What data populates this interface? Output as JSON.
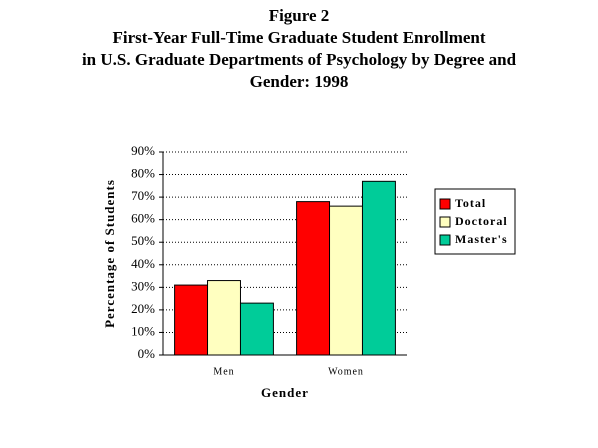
{
  "chart_data": {
    "type": "bar",
    "title": [
      "Figure 2",
      "First-Year Full-Time Graduate Student Enrollment",
      "in U.S. Graduate Departments of Psychology by Degree and",
      "Gender: 1998"
    ],
    "x_label": "Gender",
    "y_label": "Percentage of Students",
    "categories": [
      "Men",
      "Women"
    ],
    "series": [
      {
        "name": "Total",
        "color": "#ff0000",
        "values": [
          31,
          68
        ]
      },
      {
        "name": "Doctoral",
        "color": "#ffffc0",
        "values": [
          33,
          66
        ]
      },
      {
        "name": "Master's",
        "color": "#00cc99",
        "values": [
          23,
          77
        ]
      }
    ],
    "ylim": [
      0,
      90
    ],
    "yticks": [
      {
        "value": 0,
        "label": "0%"
      },
      {
        "value": 10,
        "label": "10%"
      },
      {
        "value": 20,
        "label": "20%"
      },
      {
        "value": 30,
        "label": "30%"
      },
      {
        "value": 40,
        "label": "40%"
      },
      {
        "value": 50,
        "label": "50%"
      },
      {
        "value": 60,
        "label": "60%"
      },
      {
        "value": 70,
        "label": "70%"
      },
      {
        "value": 80,
        "label": "80%"
      },
      {
        "value": 90,
        "label": "90%"
      }
    ],
    "grid": true,
    "legend": "right"
  }
}
